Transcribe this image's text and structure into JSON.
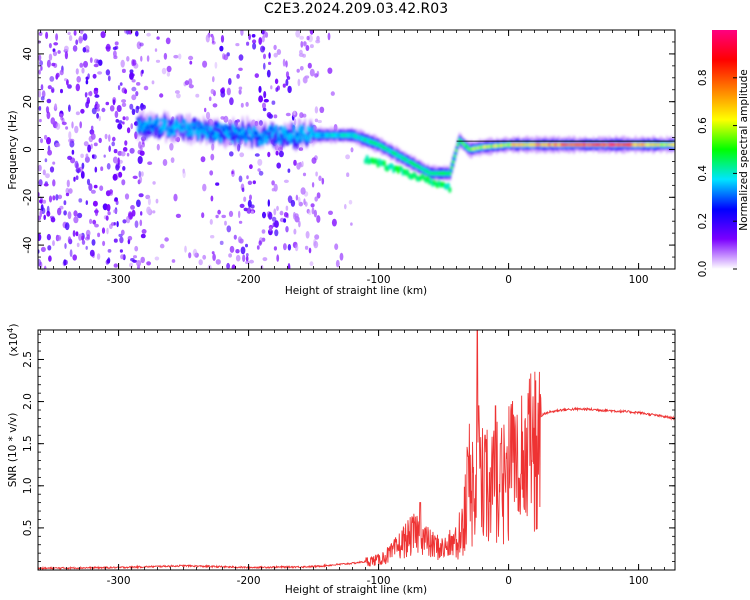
{
  "title": "C2E3.2024.209.03.42.R03",
  "chart_data": [
    {
      "type": "heatmap",
      "xlabel": "Height of straight line (km)",
      "ylabel": "Frequency (Hz)",
      "xlim": [
        -362,
        128
      ],
      "ylim": [
        -50,
        50
      ],
      "xticks": [
        -300,
        -200,
        -100,
        0,
        100
      ],
      "yticks": [
        -40,
        -20,
        0,
        20,
        40
      ],
      "colorbar": {
        "label": "Normalized spectral amplitude",
        "range": [
          0,
          1
        ],
        "ticks": [
          "0.0",
          "0.2",
          "0.4",
          "0.6",
          "0.8"
        ],
        "colors": [
          "#ffffff",
          "#7b00ff",
          "#0000ff",
          "#00e5ff",
          "#00ff00",
          "#ffff00",
          "#ff8000",
          "#ff0000",
          "#ff0080"
        ]
      },
      "ridge": {
        "description_points_x": [
          -285,
          -250,
          -220,
          -190,
          -150,
          -120,
          -100,
          -80,
          -60,
          -45,
          -38,
          -30,
          -20,
          0,
          40,
          80,
          100,
          128
        ],
        "freq": [
          10,
          9,
          7,
          6,
          6,
          6,
          2,
          -4,
          -10,
          -10,
          4,
          0,
          1,
          2,
          2,
          2,
          2,
          2
        ],
        "amplitude": [
          0.3,
          0.35,
          0.3,
          0.3,
          0.35,
          0.4,
          0.45,
          0.45,
          0.45,
          0.5,
          0.5,
          0.55,
          0.6,
          0.65,
          0.75,
          0.9,
          0.7,
          0.6
        ]
      }
    },
    {
      "type": "line",
      "xlabel": "Height of straight line (km)",
      "ylabel": "SNR (10 * v/v)",
      "yscale_note": "(x10",
      "yscale_exp": "4",
      "yscale_close": ")",
      "xlim": [
        -362,
        128
      ],
      "ylim": [
        0,
        2.85
      ],
      "xticks": [
        -300,
        -200,
        -100,
        0,
        100
      ],
      "yticks": [
        "0.5",
        "1.0",
        "1.5",
        "2.0",
        "2.5"
      ],
      "color": "#ee3333",
      "envelope": {
        "x": [
          -362,
          -300,
          -250,
          -200,
          -150,
          -120,
          -100,
          -90,
          -80,
          -70,
          -60,
          -50,
          -40,
          -35,
          -30,
          -25,
          -20,
          -15,
          -10,
          -5,
          0,
          10,
          20,
          30,
          40,
          50,
          60,
          80,
          100,
          128
        ],
        "y": [
          0.02,
          0.03,
          0.05,
          0.03,
          0.04,
          0.08,
          0.12,
          0.2,
          0.35,
          0.45,
          0.3,
          0.25,
          0.35,
          0.8,
          1.4,
          1.2,
          1.35,
          1.2,
          1.35,
          1.25,
          1.45,
          1.65,
          1.8,
          1.87,
          1.9,
          1.91,
          1.91,
          1.89,
          1.87,
          1.8
        ]
      },
      "spikes": [
        {
          "x": -68,
          "y": 0.8
        },
        {
          "x": -44,
          "y": 0.4
        },
        {
          "x": -31,
          "y": 1.35
        },
        {
          "x": -24,
          "y": 2.85
        },
        {
          "x": -23,
          "y": 1.95
        },
        {
          "x": -18,
          "y": 1.6
        },
        {
          "x": -10,
          "y": 1.95
        },
        {
          "x": -6,
          "y": 1.5
        }
      ]
    }
  ]
}
